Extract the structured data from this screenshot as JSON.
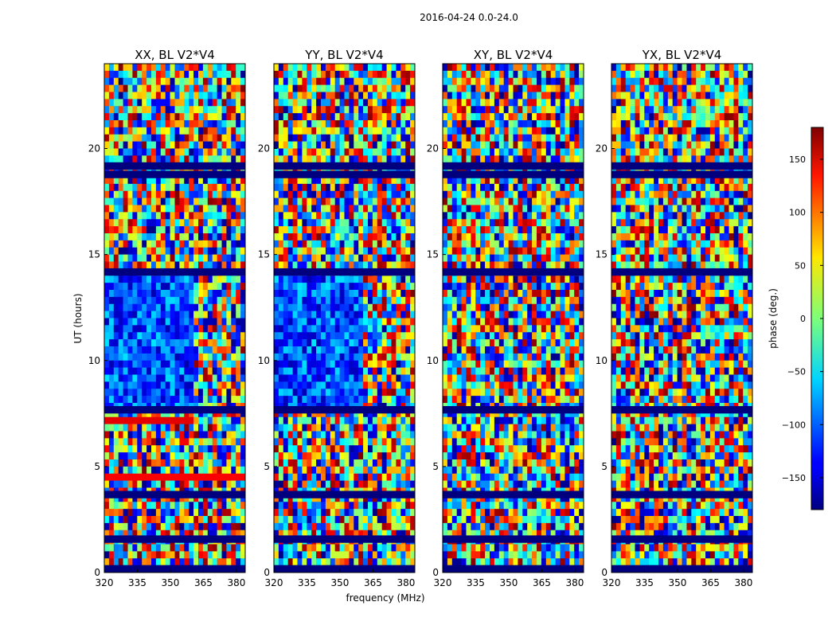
{
  "chart_data": {
    "type": "heatmap",
    "title": "2016-04-24 0.0-24.0",
    "xlabel": "frequency (MHz)",
    "ylabel": "UT (hours)",
    "xlim": [
      320,
      384
    ],
    "ylim": [
      0,
      24
    ],
    "x_ticks": [
      320,
      335,
      350,
      365,
      380
    ],
    "y_ticks": [
      0,
      5,
      10,
      15,
      20
    ],
    "panels": [
      {
        "title": "XX, BL V2*V4",
        "pol": "XX",
        "flagged_low_freq_bias": true
      },
      {
        "title": "YY, BL V2*V4",
        "pol": "YY",
        "flagged_low_freq_bias": true
      },
      {
        "title": "XY, BL V2*V4",
        "pol": "XY",
        "flagged_low_freq_bias": false
      },
      {
        "title": "YX, BL V2*V4",
        "pol": "YX",
        "flagged_low_freq_bias": false
      }
    ],
    "colorbar": {
      "label": "phase (deg.)",
      "range": [
        -180,
        180
      ],
      "ticks": [
        150,
        100,
        50,
        0,
        -50,
        -100,
        -150
      ],
      "tick_labels": [
        "150",
        "100",
        "50",
        "0",
        "−50",
        "−100",
        "−150"
      ],
      "colormap": "jet"
    },
    "flagged_hour_bands": [
      0.0,
      1.4,
      3.5,
      7.5,
      14.0,
      18.6,
      19.0
    ]
  }
}
